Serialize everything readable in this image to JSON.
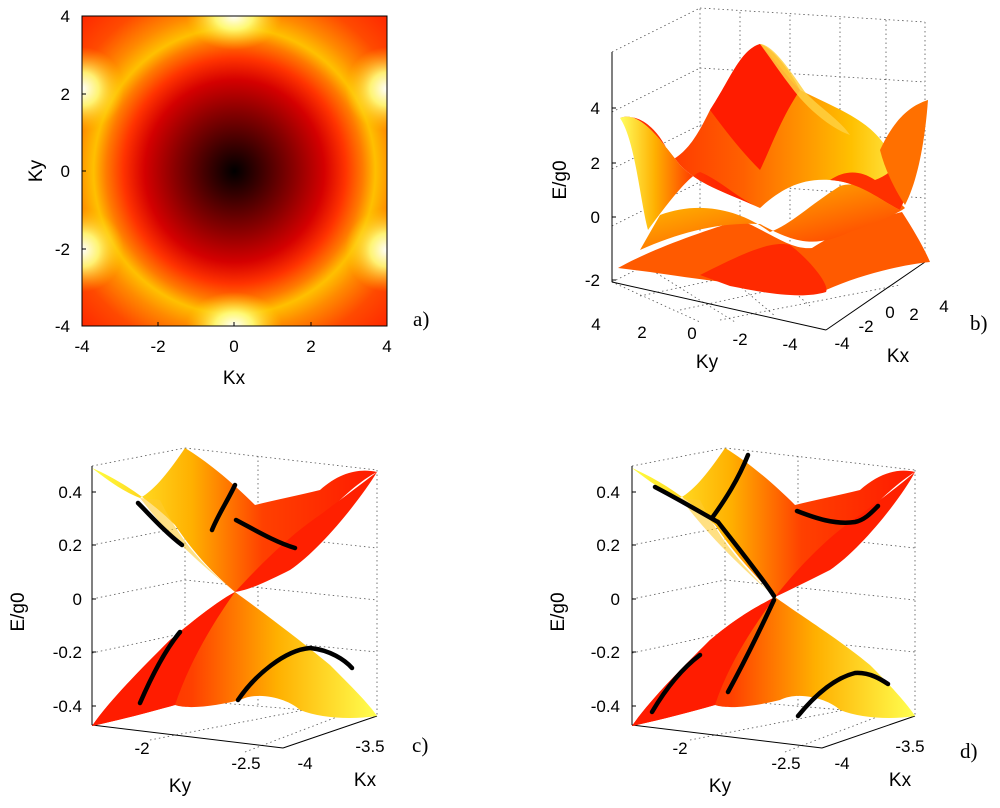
{
  "colors": {
    "colormap": [
      "#000000",
      "#3a0000",
      "#8a0000",
      "#d40000",
      "#ff3300",
      "#ff7a00",
      "#ffc000",
      "#ffff30",
      "#ffffe0"
    ],
    "curve": "#000000",
    "grid": "#555555"
  },
  "chart_data": [
    {
      "panel": "a",
      "panel_label": "a)",
      "type": "heatmap",
      "quantity": "energy band, top view",
      "xlabel": "Kx",
      "ylabel": "Ky",
      "xlim": [
        -4,
        4
      ],
      "ylim": [
        -4,
        4
      ],
      "xticks": [
        "-4",
        "-2",
        "0",
        "2",
        "4"
      ],
      "yticks": [
        "-4",
        "-2",
        "0",
        "2",
        "4"
      ],
      "colormap": "hot"
    },
    {
      "panel": "b",
      "panel_label": "b)",
      "type": "surface3d",
      "zlabel": "E/g0",
      "xlabel": "Kx",
      "ylabel": "Ky",
      "zlim": [
        -3,
        6
      ],
      "zticks": [
        "-2",
        "0",
        "2",
        "4"
      ],
      "yticks": [
        "4",
        "2",
        "0",
        "-2",
        "-4"
      ],
      "xticks": [
        "-4",
        "-2",
        "0",
        "2",
        "4"
      ],
      "grid": true
    },
    {
      "panel": "c",
      "panel_label": "c)",
      "type": "surface3d",
      "zlabel": "E/g0",
      "xlabel": "Kx",
      "ylabel": "Ky",
      "zlim": [
        -0.5,
        0.5
      ],
      "zticks": [
        "0.4",
        "0.2",
        "0",
        "-0.2",
        "-0.4"
      ],
      "yticks": [
        "-2",
        "-2.5"
      ],
      "xticks": [
        "-3.5",
        "-4"
      ],
      "grid": true
    },
    {
      "panel": "d",
      "panel_label": "d)",
      "type": "surface3d",
      "zlabel": "E/g0",
      "xlabel": "Kx",
      "ylabel": "Ky",
      "zlim": [
        -0.5,
        0.5
      ],
      "zticks": [
        "0.4",
        "0.2",
        "0",
        "-0.2",
        "-0.4"
      ],
      "yticks": [
        "-2",
        "-2.5"
      ],
      "xticks": [
        "-3.5",
        "-4"
      ],
      "grid": true
    }
  ]
}
